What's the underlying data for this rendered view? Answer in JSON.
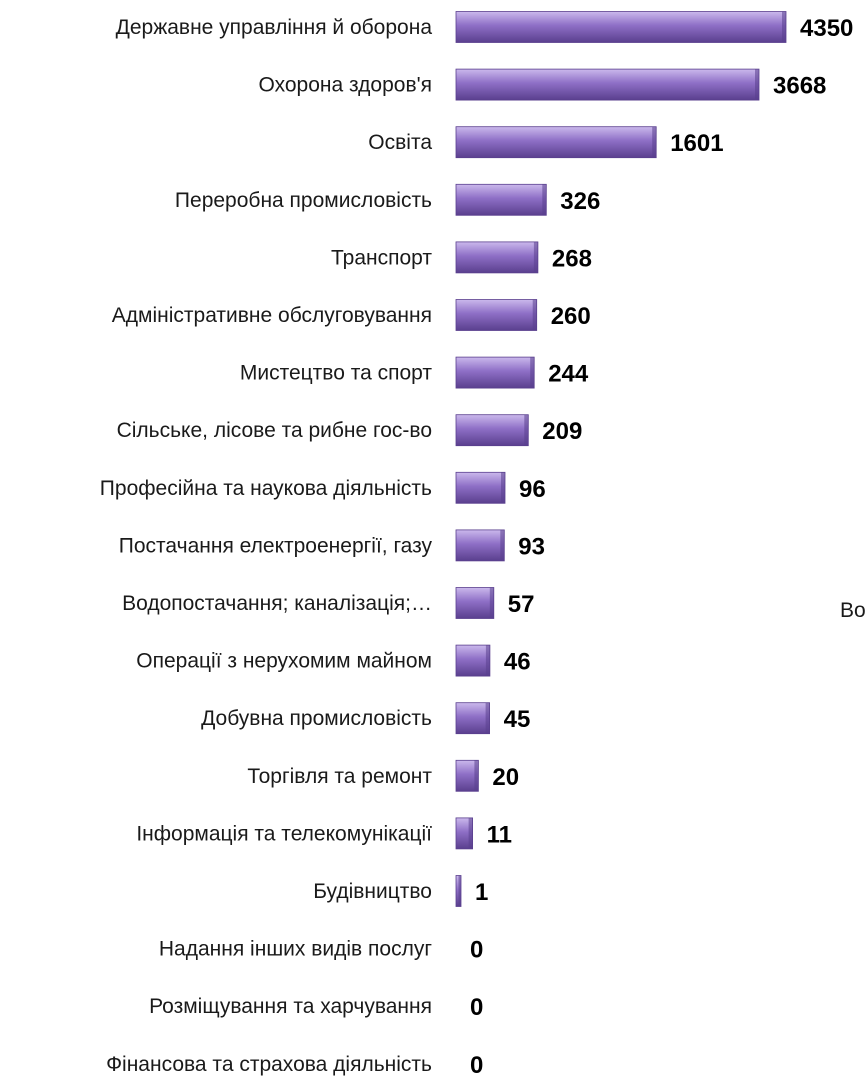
{
  "chart_data": {
    "type": "bar",
    "orientation": "horizontal",
    "categories": [
      "Державне управління й оборона",
      "Охорона здоров'я",
      "Освіта",
      "Переробна промисловість",
      "Транспорт",
      "Адміністративне обслуговування",
      "Мистецтво та спорт",
      "Сільське, лісове та рибне гос-во",
      "Професійна та наукова діяльність",
      "Постачання електроенергії, газу",
      "Водопостачання; каналізація;…",
      "Операції з нерухомим майном",
      "Добувна промисловість",
      "Торгівля та ремонт",
      "Інформація та телекомунікації",
      "Будівництво",
      "Надання інших видів послуг",
      "Розміщування та харчування",
      "Фінансова та страхова діяльність"
    ],
    "values": [
      4350,
      3668,
      1601,
      326,
      268,
      260,
      244,
      209,
      96,
      93,
      57,
      46,
      45,
      20,
      11,
      1,
      0,
      0,
      0
    ],
    "value_labels": [
      "4350",
      "3668",
      "1601",
      "326",
      "268",
      "260",
      "244",
      "209",
      "96",
      "93",
      "57",
      "46",
      "45",
      "20",
      "11",
      "1",
      "0",
      "0",
      "0"
    ],
    "title": "",
    "xlabel": "",
    "ylabel": "",
    "scale": "sqrt",
    "xlim": [
      0,
      4350
    ],
    "grid": false,
    "bar_color": "#8e6fc6",
    "bar_color_light": "#cbb9ec",
    "bar_color_dark": "#5a3f8e"
  },
  "side_text": "Во"
}
